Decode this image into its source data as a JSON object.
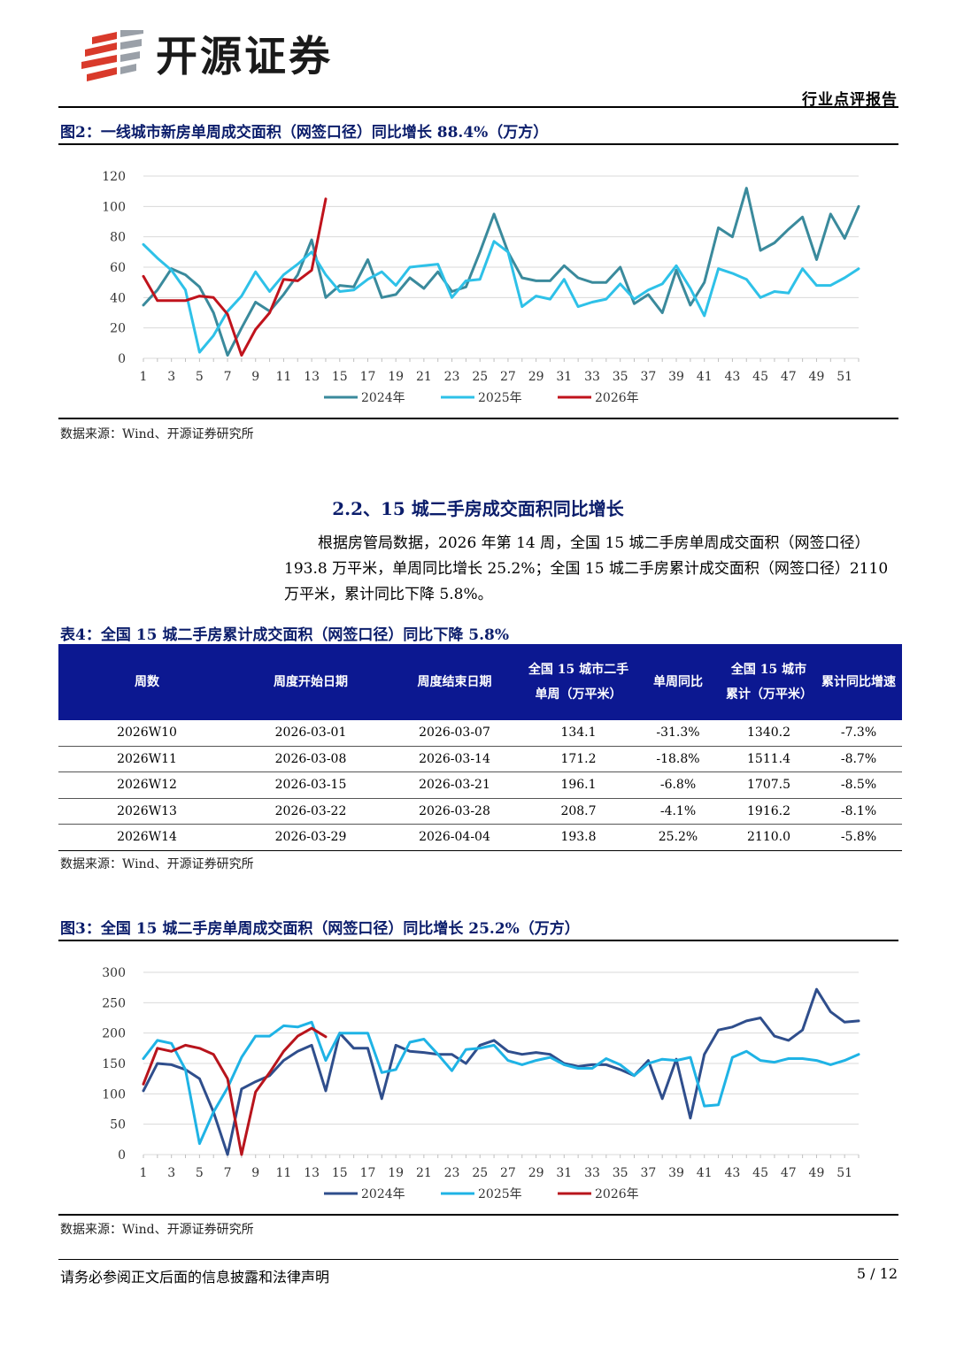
{
  "header": {
    "brand": "开源证券",
    "report_type": "行业点评报告"
  },
  "figure2": {
    "caption": "图2：一线城市新房单周成交面积（网签口径）同比增长 88.4%（万方）",
    "source": "数据来源：Wind、开源证券研究所"
  },
  "section": {
    "title": "2.2、15 城二手房成交面积同比增长",
    "paragraph": "根据房管局数据，2026 年第 14 周，全国 15 城二手房单周成交面积（网签口径）193.8 万平米，单周同比增长 25.2%；全国 15 城二手房累计成交面积（网签口径）2110 万平米，累计同比下降 5.8%。"
  },
  "table4": {
    "caption": "表4：全国 15 城二手房累计成交面积（网签口径）同比下降 5.8%",
    "headers": [
      "周数",
      "周度开始日期",
      "周度结束日期",
      "全国 15 城市二手单周（万平米）",
      "单周同比",
      "全国 15 城市累计（万平米）",
      "累计同比增速"
    ],
    "rows": [
      [
        "2026W10",
        "2026-03-01",
        "2026-03-07",
        "134.1",
        "-31.3%",
        "1340.2",
        "-7.3%"
      ],
      [
        "2026W11",
        "2026-03-08",
        "2026-03-14",
        "171.2",
        "-18.8%",
        "1511.4",
        "-8.7%"
      ],
      [
        "2026W12",
        "2026-03-15",
        "2026-03-21",
        "196.1",
        "-6.8%",
        "1707.5",
        "-8.5%"
      ],
      [
        "2026W13",
        "2026-03-22",
        "2026-03-28",
        "208.7",
        "-4.1%",
        "1916.2",
        "-8.1%"
      ],
      [
        "2026W14",
        "2026-03-29",
        "2026-04-04",
        "193.8",
        "25.2%",
        "2110.0",
        "-5.8%"
      ]
    ],
    "source": "数据来源：Wind、开源证券研究所"
  },
  "figure3": {
    "caption": "图3：全国 15 城二手房单周成交面积（网签口径）同比增长 25.2%（万方）",
    "source": "数据来源：Wind、开源证券研究所"
  },
  "footer": {
    "disclaimer": "请务必参阅正文后面的信息披露和法律声明",
    "page": "5 / 12"
  },
  "chart_data": [
    {
      "type": "line",
      "title": "图2：一线城市新房单周成交面积（网签口径）同比增长 88.4%（万方）",
      "ylim": [
        0,
        120
      ],
      "yticks": [
        0,
        20,
        40,
        60,
        80,
        100,
        120
      ],
      "xtick_labels": [
        "1",
        "3",
        "5",
        "7",
        "9",
        "11",
        "13",
        "15",
        "17",
        "19",
        "21",
        "23",
        "25",
        "27",
        "29",
        "31",
        "33",
        "35",
        "37",
        "39",
        "41",
        "43",
        "45",
        "47",
        "49",
        "51"
      ],
      "grid": true,
      "legend": "bottom",
      "series": [
        {
          "name": "2024年",
          "color": "#3a8a9c",
          "x": [
            1,
            2,
            3,
            4,
            5,
            6,
            7,
            8,
            9,
            10,
            11,
            12,
            13,
            14,
            15,
            16,
            17,
            18,
            19,
            20,
            21,
            22,
            23,
            24,
            25,
            26,
            27,
            28,
            29,
            30,
            31,
            32,
            33,
            34,
            35,
            36,
            37,
            38,
            39,
            40,
            41,
            42,
            43,
            44,
            45,
            46,
            47,
            48,
            49,
            50,
            51,
            52
          ],
          "values": [
            35,
            45,
            59,
            55,
            47,
            30,
            2,
            20,
            37,
            31,
            42,
            55,
            78,
            40,
            48,
            47,
            65,
            40,
            42,
            53,
            46,
            57,
            44,
            47,
            70,
            95,
            70,
            53,
            51,
            51,
            61,
            53,
            50,
            50,
            60,
            36,
            42,
            30,
            58,
            35,
            50,
            86,
            80,
            112,
            71,
            76,
            85,
            93,
            65,
            95,
            79,
            100
          ]
        },
        {
          "name": "2025年",
          "color": "#2ec1e8",
          "x": [
            1,
            2,
            3,
            4,
            5,
            6,
            7,
            8,
            9,
            10,
            11,
            12,
            13,
            14,
            15,
            16,
            17,
            18,
            19,
            20,
            21,
            22,
            23,
            24,
            25,
            26,
            27,
            28,
            29,
            30,
            31,
            32,
            33,
            34,
            35,
            36,
            37,
            38,
            39,
            40,
            41,
            42,
            43,
            44,
            45,
            46,
            47,
            48,
            49,
            50,
            51,
            52
          ],
          "values": [
            75,
            66,
            58,
            45,
            4,
            15,
            31,
            41,
            57,
            44,
            55,
            62,
            70,
            55,
            44,
            45,
            52,
            57,
            48,
            60,
            61,
            62,
            40,
            51,
            52,
            77,
            70,
            34,
            41,
            39,
            52,
            34,
            37,
            39,
            49,
            39,
            45,
            49,
            61,
            46,
            28,
            59,
            56,
            52,
            40,
            44,
            43,
            59,
            48,
            48,
            53,
            59
          ]
        },
        {
          "name": "2026年",
          "color": "#c0131c",
          "x": [
            1,
            2,
            3,
            4,
            5,
            6,
            7,
            8,
            9,
            10,
            11,
            12,
            13,
            14
          ],
          "values": [
            54,
            38,
            38,
            38,
            41,
            40,
            29,
            2,
            19,
            30,
            52,
            51,
            58,
            105
          ]
        }
      ]
    },
    {
      "type": "line",
      "title": "图3：全国 15 城二手房单周成交面积（网签口径）同比增长 25.2%（万方）",
      "ylim": [
        0,
        300
      ],
      "yticks": [
        0,
        50,
        100,
        150,
        200,
        250,
        300
      ],
      "xtick_labels": [
        "1",
        "3",
        "5",
        "7",
        "9",
        "11",
        "13",
        "15",
        "17",
        "19",
        "21",
        "23",
        "25",
        "27",
        "29",
        "31",
        "33",
        "35",
        "37",
        "39",
        "41",
        "43",
        "45",
        "47",
        "49",
        "51"
      ],
      "grid": true,
      "legend": "bottom",
      "series": [
        {
          "name": "2024年",
          "color": "#2f4e8c",
          "x": [
            1,
            2,
            3,
            4,
            5,
            6,
            7,
            8,
            9,
            10,
            11,
            12,
            13,
            14,
            15,
            16,
            17,
            18,
            19,
            20,
            21,
            22,
            23,
            24,
            25,
            26,
            27,
            28,
            29,
            30,
            31,
            32,
            33,
            34,
            35,
            36,
            37,
            38,
            39,
            40,
            41,
            42,
            43,
            44,
            45,
            46,
            47,
            48,
            49,
            50,
            51,
            52
          ],
          "values": [
            105,
            150,
            148,
            140,
            125,
            70,
            0,
            108,
            120,
            130,
            155,
            170,
            180,
            105,
            200,
            175,
            175,
            92,
            180,
            170,
            168,
            165,
            165,
            150,
            180,
            188,
            170,
            165,
            168,
            165,
            150,
            145,
            148,
            148,
            140,
            130,
            155,
            92,
            157,
            60,
            165,
            205,
            210,
            220,
            225,
            195,
            188,
            205,
            272,
            235,
            218,
            220
          ]
        },
        {
          "name": "2025年",
          "color": "#1fb3e5",
          "x": [
            1,
            2,
            3,
            4,
            5,
            6,
            7,
            8,
            9,
            10,
            11,
            12,
            13,
            14,
            15,
            16,
            17,
            18,
            19,
            20,
            21,
            22,
            23,
            24,
            25,
            26,
            27,
            28,
            29,
            30,
            31,
            32,
            33,
            34,
            35,
            36,
            37,
            38,
            39,
            40,
            41,
            42,
            43,
            44,
            45,
            46,
            47,
            48,
            49,
            50,
            51,
            52
          ],
          "values": [
            158,
            188,
            183,
            140,
            18,
            70,
            110,
            160,
            195,
            195,
            212,
            210,
            218,
            155,
            200,
            200,
            200,
            135,
            140,
            185,
            190,
            165,
            138,
            173,
            175,
            180,
            155,
            148,
            155,
            160,
            148,
            142,
            142,
            158,
            148,
            130,
            150,
            157,
            155,
            160,
            80,
            82,
            160,
            170,
            155,
            152,
            158,
            158,
            155,
            148,
            155,
            165
          ]
        },
        {
          "name": "2026年",
          "color": "#b8141c",
          "x": [
            1,
            2,
            3,
            4,
            5,
            6,
            7,
            8,
            9,
            10,
            11,
            12,
            13,
            14
          ],
          "values": [
            116,
            175,
            170,
            180,
            175,
            165,
            125,
            0,
            103,
            135,
            170,
            195,
            208,
            194
          ]
        }
      ]
    }
  ]
}
